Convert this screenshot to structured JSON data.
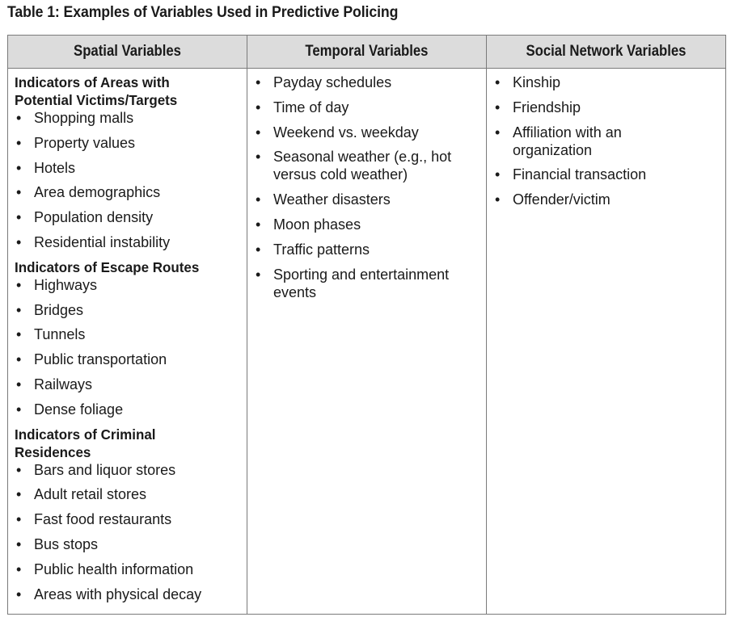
{
  "caption": "Table 1: Examples of Variables Used in Predictive Policing",
  "headers": [
    "Spatial Variables",
    "Temporal Variables",
    "Social Network Variables"
  ],
  "spatial_groups": [
    {
      "heading": "Indicators of Areas with Potential Victims/Targets",
      "items": [
        "Shopping malls",
        "Property values",
        "Hotels",
        "Area demographics",
        "Population density",
        "Residential instability"
      ]
    },
    {
      "heading": "Indicators of Escape Routes",
      "items": [
        "Highways",
        "Bridges",
        "Tunnels",
        "Public transportation",
        "Railways",
        "Dense foliage"
      ]
    },
    {
      "heading": "Indicators of Criminal Residences",
      "items": [
        "Bars and liquor stores",
        "Adult retail stores",
        "Fast food restaurants",
        "Bus stops",
        "Public health information",
        "Areas with physical decay"
      ]
    }
  ],
  "temporal_items": [
    "Payday schedules",
    "Time of day",
    "Weekend vs. weekday",
    "Seasonal weather (e.g., hot versus cold weather)",
    "Weather disasters",
    "Moon phases",
    "Traffic patterns",
    "Sporting and entertainment events"
  ],
  "social_items": [
    "Kinship",
    "Friendship",
    "Affiliation with an organization",
    "Financial transaction",
    "Offender/victim"
  ]
}
